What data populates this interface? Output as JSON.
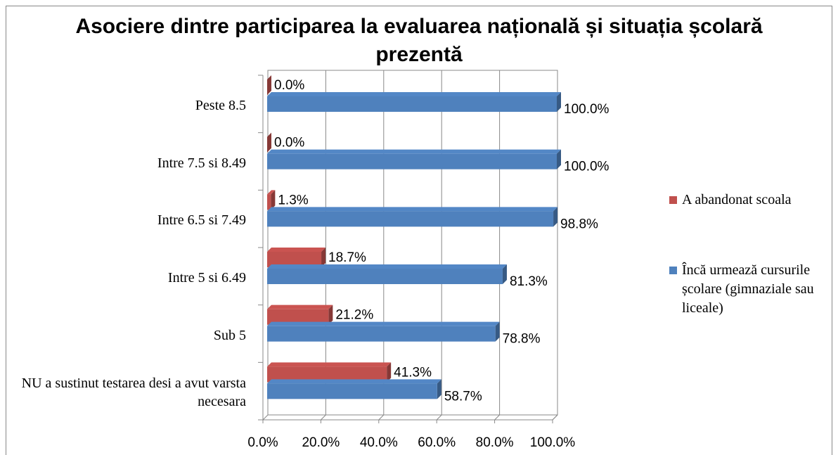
{
  "chart_data": {
    "type": "bar3d_horizontal",
    "title": "Asociere dintre participarea la evaluarea națională și situația școlară prezentă",
    "categories": [
      "NU a sustinut testarea desi a avut varsta necesara",
      "Sub 5",
      "Intre 5 si 6.49",
      "Intre 6.5 si 7.49",
      "Intre 7.5 si 8.49",
      "Peste 8.5"
    ],
    "series": [
      {
        "name": "A abandonat scoala",
        "color": "#c0504d",
        "values": [
          41.3,
          21.2,
          18.7,
          1.3,
          0.0,
          0.0
        ],
        "value_labels": [
          "41.3%",
          "21.2%",
          "18.7%",
          "1.3%",
          "0.0%",
          "0.0%"
        ]
      },
      {
        "name": "Încă urmează cursurile școlare (gimnaziale sau liceale)",
        "color": "#4f81bd",
        "values": [
          58.7,
          78.8,
          81.3,
          98.8,
          100.0,
          100.0
        ],
        "value_labels": [
          "58.7%",
          "78.8%",
          "81.3%",
          "98.8%",
          "100.0%",
          "100.0%"
        ]
      }
    ],
    "xlim": [
      0,
      100
    ],
    "xticks": [
      {
        "value": 0,
        "label": "0.0%"
      },
      {
        "value": 20,
        "label": "20.0%"
      },
      {
        "value": 40,
        "label": "40.0%"
      },
      {
        "value": 60,
        "label": "60.0%"
      },
      {
        "value": 80,
        "label": "80.0%"
      },
      {
        "value": 100,
        "label": "100.0%"
      }
    ],
    "grid": true,
    "legend": "right"
  }
}
